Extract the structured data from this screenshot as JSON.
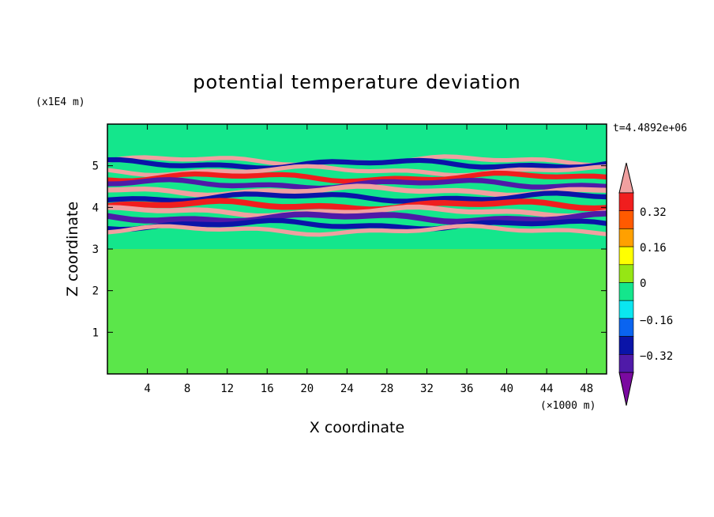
{
  "chart_data": {
    "type": "heatmap",
    "title": "potential temperature deviation",
    "xlabel": "X coordinate",
    "ylabel": "Z coordinate",
    "x_unit": "(×1000 m)",
    "y_unit": "(x1E4 m)",
    "time_label": "t=4.4892e+06",
    "xlim": [
      0,
      50
    ],
    "ylim": [
      0,
      6
    ],
    "x_ticks": [
      4,
      8,
      12,
      16,
      20,
      24,
      28,
      32,
      36,
      40,
      44,
      48
    ],
    "y_ticks": [
      1,
      2,
      3,
      4,
      5
    ],
    "colorbar": {
      "colors": [
        "#7a0aa0",
        "#4f1aa8",
        "#0a14a8",
        "#0a64f0",
        "#0ae6f0",
        "#14e68c",
        "#96e614",
        "#ffff00",
        "#ffa000",
        "#ff5a00",
        "#f01e1e",
        "#f0a0a0"
      ],
      "tick_labels": [
        "0.32",
        "0.16",
        "0",
        "−0.16",
        "−0.32"
      ],
      "tick_values": [
        0.32,
        0.16,
        0,
        -0.16,
        -0.32
      ],
      "extend": "both"
    },
    "background_level": "#14e68c",
    "bands": [
      {
        "z": 5.12,
        "thickness": 0.1,
        "color": "#f0a0a0"
      },
      {
        "z": 5.04,
        "thickness": 0.12,
        "color": "#0a14a8"
      },
      {
        "z": 4.88,
        "thickness": 0.1,
        "color": "#f0a0a0"
      },
      {
        "z": 4.72,
        "thickness": 0.12,
        "color": "#f01e1e"
      },
      {
        "z": 4.56,
        "thickness": 0.12,
        "color": "#4f1aa8"
      },
      {
        "z": 4.4,
        "thickness": 0.12,
        "color": "#f0a0a0"
      },
      {
        "z": 4.24,
        "thickness": 0.12,
        "color": "#0a14a8"
      },
      {
        "z": 4.05,
        "thickness": 0.14,
        "color": "#f01e1e"
      },
      {
        "z": 3.9,
        "thickness": 0.12,
        "color": "#f0a0a0"
      },
      {
        "z": 3.75,
        "thickness": 0.14,
        "color": "#4f1aa8"
      },
      {
        "z": 3.58,
        "thickness": 0.12,
        "color": "#0a14a8"
      },
      {
        "z": 3.45,
        "thickness": 0.1,
        "color": "#f0a0a0"
      }
    ]
  }
}
